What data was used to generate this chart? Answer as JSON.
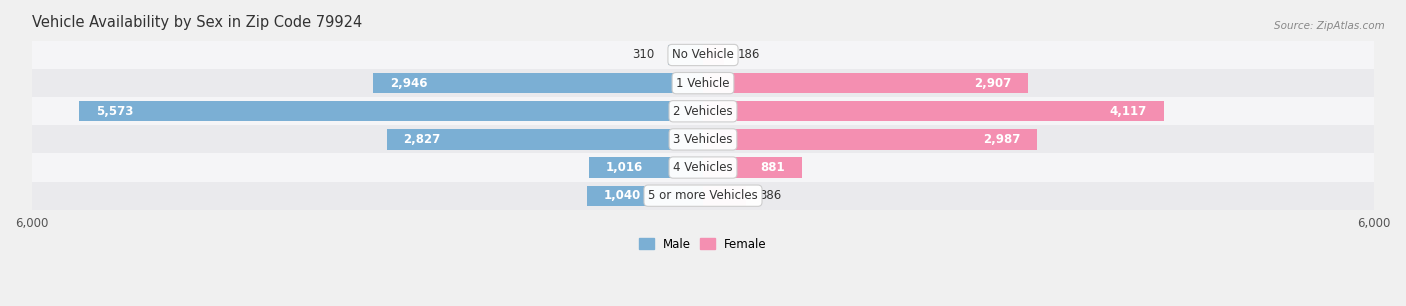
{
  "title": "Vehicle Availability by Sex in Zip Code 79924",
  "source": "Source: ZipAtlas.com",
  "categories": [
    "No Vehicle",
    "1 Vehicle",
    "2 Vehicles",
    "3 Vehicles",
    "4 Vehicles",
    "5 or more Vehicles"
  ],
  "male_values": [
    310,
    2946,
    5573,
    2827,
    1016,
    1040
  ],
  "female_values": [
    186,
    2907,
    4117,
    2987,
    881,
    386
  ],
  "male_color": "#7bafd4",
  "female_color": "#f48fb1",
  "male_color_dark": "#5a9abf",
  "female_color_dark": "#e0608a",
  "bar_height": 0.72,
  "xlim": 6000,
  "bg_color": "#f0f0f0",
  "row_colors": [
    "#f5f5f7",
    "#eaeaed"
  ],
  "title_fontsize": 10.5,
  "label_fontsize": 8.5,
  "value_fontsize": 8.5,
  "axis_label_fontsize": 8.5
}
